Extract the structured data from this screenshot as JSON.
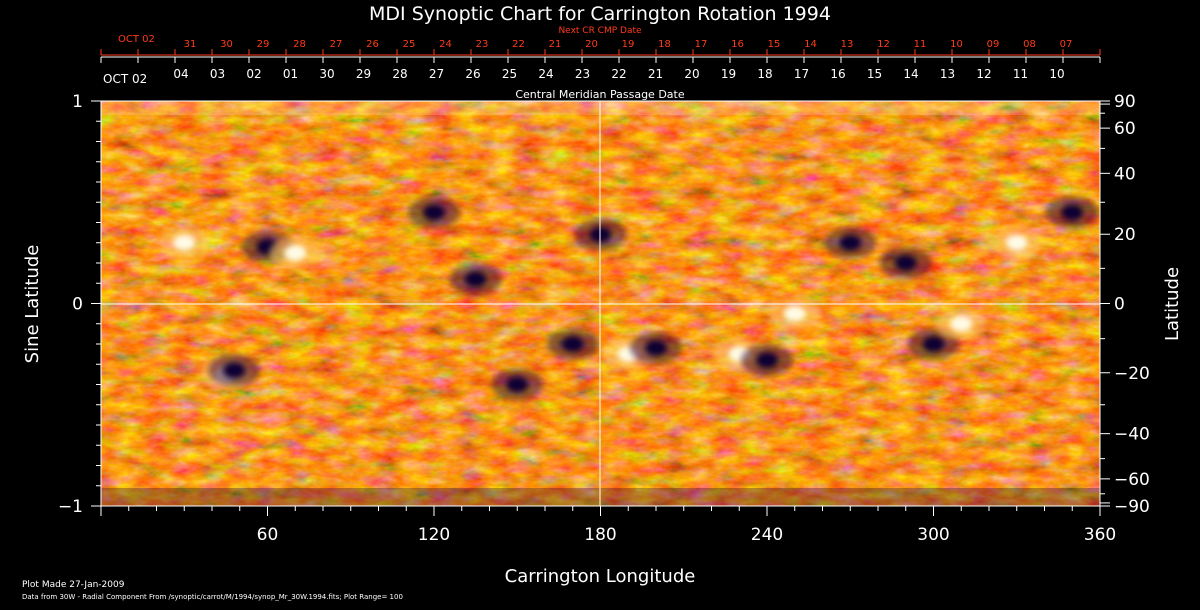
{
  "chart_data": {
    "type": "heatmap",
    "title": "MDI Synoptic Chart for Carrington Rotation 1994",
    "xlabel": "Carrington Longitude",
    "ylabel_left": "Sine Latitude",
    "ylabel_right": "Latitude",
    "xlim": [
      0,
      360
    ],
    "ylim": [
      -1,
      1
    ],
    "x_ticks": [
      "60",
      "120",
      "180",
      "240",
      "300",
      "360"
    ],
    "x_tick_values": [
      60,
      120,
      180,
      240,
      300,
      360
    ],
    "y_ticks_left": [
      "1",
      "0",
      "−1"
    ],
    "y_tick_values_left": [
      1,
      0,
      -1
    ],
    "y_ticks_right": [
      "90",
      "60",
      "40",
      "20",
      "0",
      "−20",
      "−40",
      "−60",
      "−90"
    ],
    "y_tick_values_right": [
      90,
      60,
      40,
      20,
      0,
      -20,
      -40,
      -60,
      -90
    ],
    "top_axis_next_label": "Next CR CMP Date",
    "top_axis_next_start": "OCT 02",
    "top_axis_next_dates": [
      "31",
      "30",
      "29",
      "28",
      "27",
      "26",
      "25",
      "24",
      "23",
      "22",
      "21",
      "20",
      "19",
      "18",
      "17",
      "16",
      "15",
      "14",
      "13",
      "12",
      "11",
      "10",
      "09",
      "08",
      "07"
    ],
    "top_axis_cmp_label": "Central Meridian Passage Date",
    "top_axis_cmp_start": "OCT 02",
    "top_axis_cmp_dates": [
      "04",
      "03",
      "02",
      "01",
      "30",
      "29",
      "28",
      "27",
      "26",
      "25",
      "24",
      "23",
      "22",
      "21",
      "20",
      "19",
      "18",
      "17",
      "16",
      "15",
      "14",
      "13",
      "12",
      "11",
      "10"
    ],
    "grid": "crosshair at longitude 180 and sine latitude 0",
    "colormap": [
      "#000033",
      "#3a0a2a",
      "#8a1a0a",
      "#d23a00",
      "#ff6a10",
      "#ff9a40",
      "#ffd080",
      "#ffffff"
    ],
    "features": [
      {
        "lon": 30,
        "lat": 0.3,
        "polarity": "positive"
      },
      {
        "lon": 60,
        "lat": 0.28,
        "polarity": "negative"
      },
      {
        "lon": 70,
        "lat": 0.25,
        "polarity": "positive"
      },
      {
        "lon": 120,
        "lat": 0.45,
        "polarity": "negative"
      },
      {
        "lon": 135,
        "lat": 0.12,
        "polarity": "negative"
      },
      {
        "lon": 180,
        "lat": 0.34,
        "polarity": "negative"
      },
      {
        "lon": 45,
        "lat": -0.35,
        "polarity": "positive"
      },
      {
        "lon": 48,
        "lat": -0.33,
        "polarity": "negative"
      },
      {
        "lon": 150,
        "lat": -0.4,
        "polarity": "negative"
      },
      {
        "lon": 170,
        "lat": -0.2,
        "polarity": "negative"
      },
      {
        "lon": 190,
        "lat": -0.25,
        "polarity": "positive"
      },
      {
        "lon": 200,
        "lat": -0.22,
        "polarity": "negative"
      },
      {
        "lon": 230,
        "lat": -0.25,
        "polarity": "positive"
      },
      {
        "lon": 240,
        "lat": -0.28,
        "polarity": "negative"
      },
      {
        "lon": 250,
        "lat": -0.05,
        "polarity": "positive"
      },
      {
        "lon": 270,
        "lat": 0.3,
        "polarity": "negative"
      },
      {
        "lon": 290,
        "lat": 0.2,
        "polarity": "negative"
      },
      {
        "lon": 300,
        "lat": -0.2,
        "polarity": "negative"
      },
      {
        "lon": 310,
        "lat": -0.1,
        "polarity": "positive"
      },
      {
        "lon": 330,
        "lat": 0.3,
        "polarity": "positive"
      },
      {
        "lon": 350,
        "lat": 0.45,
        "polarity": "negative"
      }
    ]
  },
  "footer": {
    "plot_made": "Plot Made 27-Jan-2009",
    "data_info": "Data from 30W - Radial Component From /synoptic/carrot/M/1994/synop_Mr_30W.1994.fits; Plot Range=  100"
  }
}
